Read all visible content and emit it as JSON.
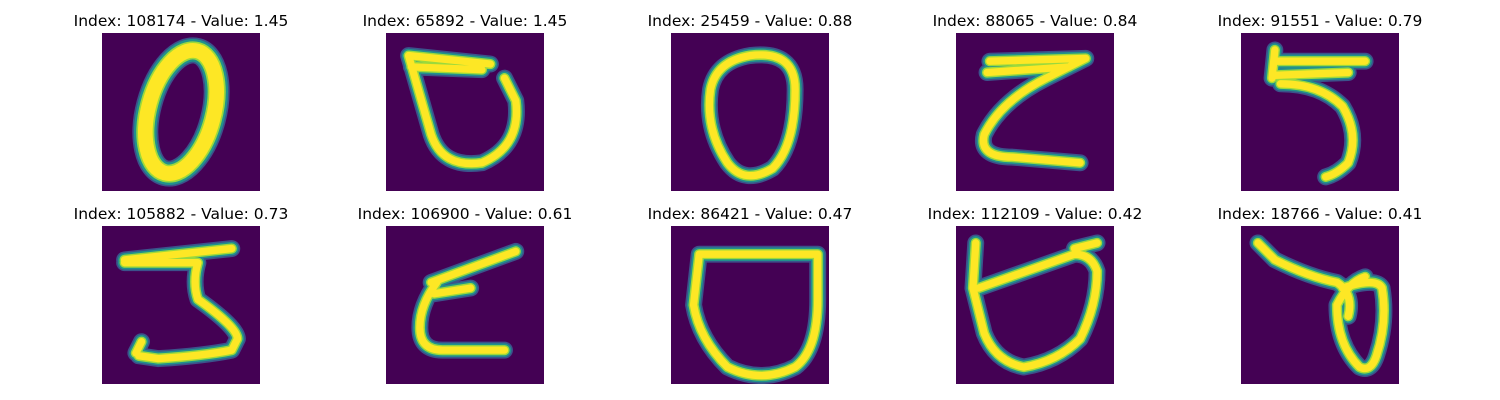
{
  "colors": {
    "background": "#440154",
    "stroke_core": "#fde725",
    "stroke_mid": "#9bd93c",
    "stroke_edge": "#21918c",
    "stroke_outer": "#3b528b"
  },
  "panels": [
    {
      "title": "Index: 108174 - Value: 1.45",
      "index": 108174,
      "value": 1.45,
      "depicts": "0"
    },
    {
      "title": "Index: 65892 - Value: 1.45",
      "index": 65892,
      "value": 1.45,
      "depicts": "0"
    },
    {
      "title": "Index: 25459 - Value: 0.88",
      "index": 25459,
      "value": 0.88,
      "depicts": "0"
    },
    {
      "title": "Index: 88065 - Value: 0.84",
      "index": 88065,
      "value": 0.84,
      "depicts": "z"
    },
    {
      "title": "Index: 91551 - Value: 0.79",
      "index": 91551,
      "value": 0.79,
      "depicts": "5"
    },
    {
      "title": "Index: 105882 - Value: 0.73",
      "index": 105882,
      "value": 0.73,
      "depicts": "5"
    },
    {
      "title": "Index: 106900 - Value: 0.61",
      "index": 106900,
      "value": 0.61,
      "depicts": "z"
    },
    {
      "title": "Index: 86421 - Value: 0.47",
      "index": 86421,
      "value": 0.47,
      "depicts": "0"
    },
    {
      "title": "Index: 112109 - Value: 0.42",
      "index": 112109,
      "value": 0.42,
      "depicts": "0"
    },
    {
      "title": "Index: 18766 - Value: 0.41",
      "index": 18766,
      "value": 0.41,
      "depicts": "0"
    }
  ]
}
